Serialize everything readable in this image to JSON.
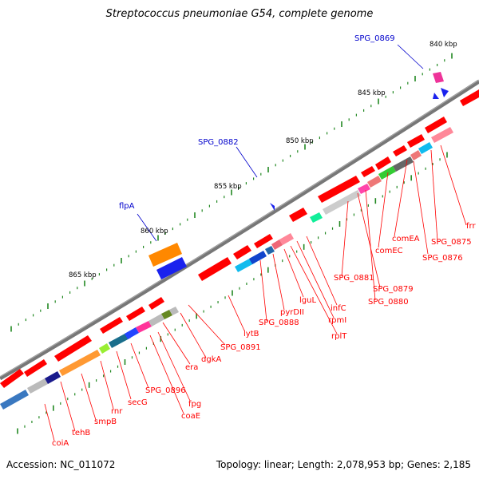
{
  "title": "Streptococcus pneumoniae G54, complete genome",
  "footer": {
    "accession_label": "Accession: NC_011072",
    "stats_label": "Topology: linear; Length: 2,078,953 bp; Genes: 2,185"
  },
  "colors": {
    "gene_red": "#ff0000",
    "label_red": "#ff0000",
    "label_blue": "#0000cc",
    "backbone": "#888888",
    "tick_green": "#228822",
    "orange": "#ff8800",
    "blue": "#1a33ff"
  },
  "scale_labels": [
    "840 kbp",
    "845 kbp",
    "850 kbp",
    "855 kbp",
    "860 kbp",
    "865 kbp"
  ],
  "upper_labels": [
    "SPG_0869",
    "SPG_0882",
    "flpA"
  ],
  "lower_labels": [
    "frr",
    "SPG_0875",
    "comEA",
    "SPG_0876",
    "comEC",
    "SPG_0881",
    "SPG_0879",
    "SPG_0880",
    "infC",
    "rpmI",
    "rplT",
    "lguL",
    "pyrDII",
    "SPG_0888",
    "lytB",
    "SPG_0891",
    "dgkA",
    "era",
    "fpg",
    "coaE",
    "SPG_0896",
    "secG",
    "rnr",
    "smpB",
    "tehB",
    "coiA"
  ]
}
